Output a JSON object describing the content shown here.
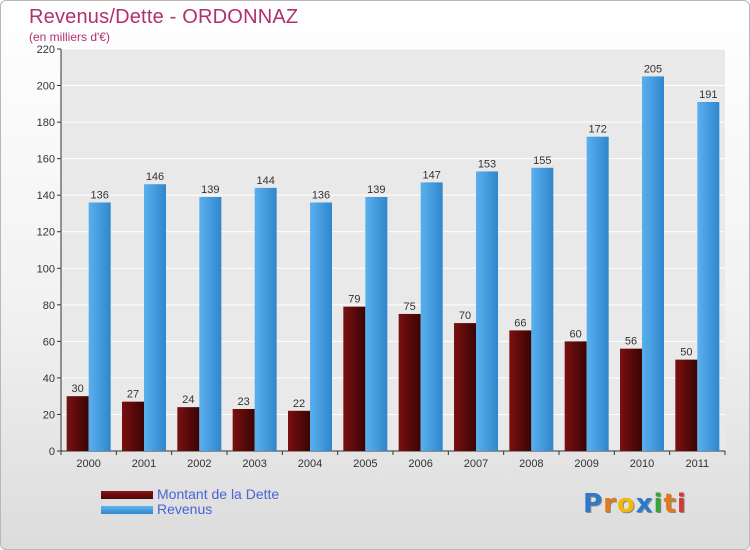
{
  "title": "Revenus/Dette - ORDONNAZ",
  "subtitle": "(en milliers d'€)",
  "brand": {
    "text": "Proxiti",
    "letters": [
      {
        "ch": "P",
        "color": "#2f79c9"
      },
      {
        "ch": "r",
        "color": "#e07a1f"
      },
      {
        "ch": "o",
        "color": "#f2b90c"
      },
      {
        "ch": "x",
        "color": "#2f79c9"
      },
      {
        "ch": "i",
        "color": "#3aa33a"
      },
      {
        "ch": "t",
        "color": "#e07a1f"
      },
      {
        "ch": "i",
        "color": "#d03a3a"
      }
    ]
  },
  "colors": {
    "title": "#b0306e",
    "legend_text": "#4a63d6",
    "dette": "#6b0a0a",
    "revenus": "#4aa3e6",
    "axis": "#333333",
    "grid": "#ffffff"
  },
  "chart_data": {
    "type": "bar",
    "title": "Revenus/Dette - ORDONNAZ",
    "subtitle": "(en milliers d'€)",
    "xlabel": "",
    "ylabel": "",
    "categories": [
      "2000",
      "2001",
      "2002",
      "2003",
      "2004",
      "2005",
      "2006",
      "2007",
      "2008",
      "2009",
      "2010",
      "2011"
    ],
    "series": [
      {
        "name": "Montant de la Dette",
        "color": "#6b0a0a",
        "values": [
          30,
          27,
          24,
          23,
          22,
          79,
          75,
          70,
          66,
          60,
          56,
          50
        ]
      },
      {
        "name": "Revenus",
        "color": "#4aa3e6",
        "values": [
          136,
          146,
          139,
          144,
          136,
          139,
          147,
          153,
          155,
          172,
          205,
          191
        ]
      }
    ],
    "ylim": [
      0,
      220
    ],
    "yticks": [
      0,
      20,
      40,
      60,
      80,
      100,
      120,
      140,
      160,
      180,
      200,
      220
    ],
    "grid": true,
    "legend": "bottom-left"
  }
}
